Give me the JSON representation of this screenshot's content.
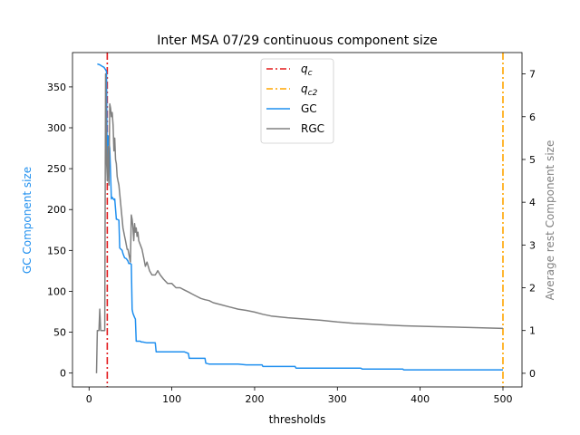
{
  "chart_data": {
    "type": "line",
    "title": "Inter MSA 07/29 continuous component size",
    "xlabel": "thresholds",
    "ylabel_left": "GC Component size",
    "ylabel_right": "Average rest Component size",
    "xlim": [
      -20,
      523
    ],
    "ylim_left": [
      -17,
      392
    ],
    "ylim_right": [
      -0.32,
      7.5
    ],
    "xticks": [
      0,
      100,
      200,
      300,
      400,
      500
    ],
    "yticks_left": [
      0,
      50,
      100,
      150,
      200,
      250,
      300,
      350
    ],
    "yticks_right": [
      0,
      1,
      2,
      3,
      4,
      5,
      6,
      7
    ],
    "grid": false,
    "legend_position": "top-center",
    "colors": {
      "GC": "#1f8fef",
      "RGC": "#808080",
      "qc": "#e31a1c",
      "qc2": "#ffa500",
      "left_axis_label": "#1f8fef",
      "right_axis_label": "#808080"
    },
    "vlines": [
      {
        "label": "q_c",
        "label_main": "q",
        "label_sub": "c",
        "x": 22,
        "color": "#e31a1c",
        "axis": "left"
      },
      {
        "label": "q_c2",
        "label_main": "q",
        "label_sub": "c2",
        "x": 500,
        "color": "#ffa500",
        "axis": "left"
      }
    ],
    "series": [
      {
        "name": "GC",
        "axis": "left",
        "color": "#1f8fef",
        "x": [
          10,
          13,
          16,
          18,
          20,
          21,
          22,
          23,
          25,
          27,
          28,
          30,
          31,
          33,
          34,
          36,
          37,
          40,
          41,
          43,
          45,
          47,
          48,
          50,
          51,
          52,
          53,
          55,
          56,
          57,
          60,
          62,
          63,
          65,
          70,
          75,
          80,
          81,
          90,
          100,
          110,
          115,
          120,
          121,
          130,
          140,
          141,
          145,
          150,
          160,
          170,
          180,
          190,
          200,
          209,
          210,
          220,
          230,
          240,
          249,
          250,
          260,
          280,
          300,
          320,
          328,
          330,
          350,
          370,
          379,
          380,
          400,
          420,
          440,
          460,
          480,
          500
        ],
        "y": [
          378,
          377,
          375,
          374,
          371,
          369,
          240,
          290,
          275,
          213,
          215,
          212,
          213,
          188,
          188,
          187,
          153,
          150,
          146,
          141,
          140,
          137,
          134,
          134,
          133,
          78,
          73,
          68,
          66,
          39,
          39,
          39,
          38,
          38,
          37,
          37,
          37,
          26,
          26,
          26,
          26,
          26,
          24,
          18,
          18,
          18,
          12,
          11,
          11,
          11,
          11,
          11,
          10,
          10,
          10,
          8,
          8,
          8,
          8,
          8,
          6,
          6,
          6,
          6,
          6,
          6,
          5,
          5,
          5,
          5,
          4,
          4,
          4,
          4,
          4,
          4,
          4
        ]
      },
      {
        "name": "RGC",
        "axis": "right",
        "color": "#808080",
        "x": [
          9,
          10,
          12,
          13,
          14,
          15,
          16,
          17,
          18,
          19,
          20,
          21,
          22,
          23,
          24,
          25,
          26,
          27,
          28,
          29,
          30,
          31,
          32,
          33,
          34,
          35,
          36,
          37,
          38,
          39,
          40,
          41,
          42,
          43,
          44,
          45,
          46,
          47,
          48,
          49,
          50,
          51,
          52,
          53,
          54,
          55,
          56,
          57,
          58,
          59,
          60,
          62,
          64,
          66,
          68,
          70,
          73,
          76,
          80,
          83,
          86,
          90,
          95,
          100,
          105,
          110,
          115,
          120,
          125,
          130,
          135,
          140,
          145,
          150,
          160,
          170,
          180,
          190,
          200,
          210,
          220,
          240,
          260,
          280,
          300,
          320,
          340,
          360,
          380,
          400,
          420,
          440,
          460,
          480,
          500
        ],
        "y": [
          0.0,
          1.0,
          1.0,
          1.5,
          1.0,
          1.0,
          1.0,
          1.0,
          1.0,
          1.0,
          7.0,
          5.0,
          4.5,
          5.3,
          4.4,
          6.3,
          6.2,
          6.0,
          6.1,
          5.8,
          5.2,
          5.5,
          5.0,
          4.9,
          4.6,
          4.5,
          4.4,
          4.2,
          4.0,
          3.8,
          3.6,
          3.4,
          3.3,
          3.2,
          3.1,
          3.0,
          2.9,
          2.9,
          2.8,
          2.7,
          2.6,
          3.7,
          3.6,
          3.4,
          3.1,
          3.5,
          3.3,
          3.4,
          3.2,
          3.3,
          3.1,
          3.0,
          2.9,
          2.7,
          2.5,
          2.6,
          2.4,
          2.3,
          2.3,
          2.4,
          2.3,
          2.2,
          2.1,
          2.1,
          2.0,
          2.0,
          1.95,
          1.9,
          1.85,
          1.8,
          1.75,
          1.72,
          1.7,
          1.65,
          1.6,
          1.55,
          1.5,
          1.47,
          1.43,
          1.38,
          1.34,
          1.3,
          1.27,
          1.24,
          1.2,
          1.17,
          1.15,
          1.13,
          1.11,
          1.1,
          1.09,
          1.08,
          1.07,
          1.06,
          1.05
        ]
      }
    ]
  }
}
